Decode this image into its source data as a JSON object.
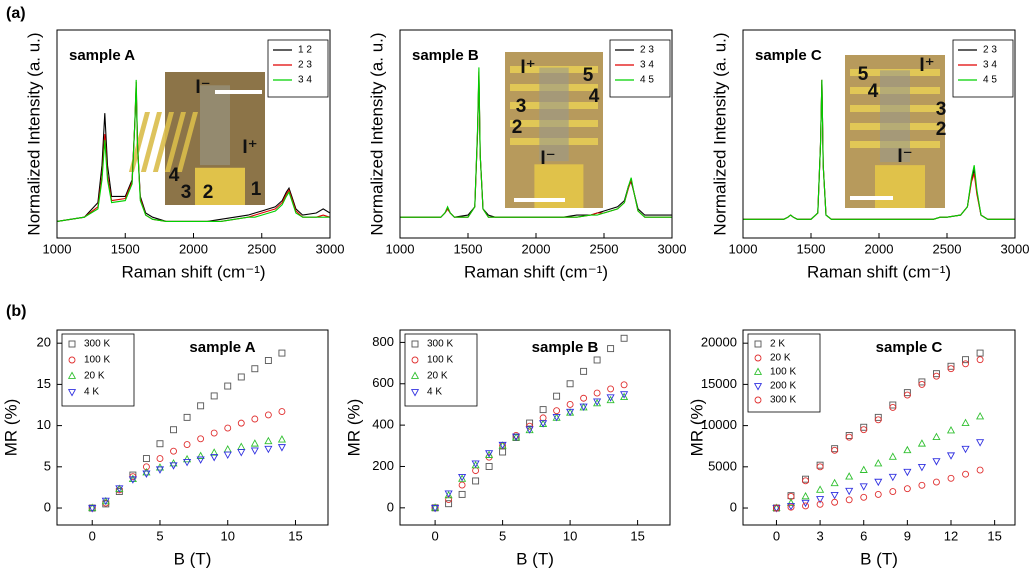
{
  "figure_labels": [
    "(a)",
    "(b)"
  ],
  "chart_data": [
    {
      "type": "line",
      "title": "sample A",
      "x_label": "Raman shift (cm⁻¹)",
      "y_label": "Normalized Intensity (a. u.)",
      "xlim": [
        1000,
        3000
      ],
      "xticks": [
        1000,
        1500,
        2000,
        2500,
        3000
      ],
      "ylim": [
        0,
        1
      ],
      "legend": "upper right",
      "x": [
        1000,
        1100,
        1200,
        1300,
        1330,
        1350,
        1370,
        1400,
        1500,
        1550,
        1570,
        1580,
        1590,
        1610,
        1650,
        1700,
        1800,
        1900,
        2000,
        2100,
        2200,
        2300,
        2400,
        2450,
        2500,
        2600,
        2650,
        2680,
        2700,
        2720,
        2750,
        2800,
        2900,
        2950,
        3000
      ],
      "series": [
        {
          "name": "1 2",
          "color": "#000000",
          "values": [
            0.08,
            0.09,
            0.1,
            0.17,
            0.35,
            0.6,
            0.35,
            0.2,
            0.2,
            0.28,
            0.55,
            0.72,
            0.45,
            0.2,
            0.12,
            0.1,
            0.08,
            0.08,
            0.08,
            0.08,
            0.09,
            0.1,
            0.11,
            0.12,
            0.13,
            0.15,
            0.18,
            0.22,
            0.24,
            0.2,
            0.14,
            0.11,
            0.12,
            0.14,
            0.12
          ]
        },
        {
          "name": "2 3",
          "color": "#e00000",
          "values": [
            0.08,
            0.09,
            0.1,
            0.15,
            0.3,
            0.5,
            0.3,
            0.18,
            0.19,
            0.27,
            0.55,
            0.75,
            0.45,
            0.19,
            0.11,
            0.09,
            0.08,
            0.08,
            0.08,
            0.08,
            0.08,
            0.09,
            0.1,
            0.11,
            0.12,
            0.14,
            0.17,
            0.21,
            0.23,
            0.19,
            0.13,
            0.1,
            0.1,
            0.11,
            0.1
          ]
        },
        {
          "name": "3 4",
          "color": "#00d000",
          "values": [
            0.08,
            0.09,
            0.1,
            0.14,
            0.28,
            0.47,
            0.28,
            0.17,
            0.18,
            0.26,
            0.55,
            0.76,
            0.45,
            0.18,
            0.11,
            0.09,
            0.08,
            0.08,
            0.08,
            0.08,
            0.08,
            0.09,
            0.1,
            0.1,
            0.11,
            0.13,
            0.16,
            0.2,
            0.22,
            0.18,
            0.12,
            0.1,
            0.1,
            0.1,
            0.1
          ]
        }
      ],
      "inset_labels": [
        "I⁻",
        "I⁺",
        "4",
        "3",
        "2",
        "1"
      ]
    },
    {
      "type": "line",
      "title": "sample B",
      "x_label": "Raman shift (cm⁻¹)",
      "y_label": "Normalized Intensity (a. u.)",
      "xlim": [
        1000,
        3000
      ],
      "xticks": [
        1000,
        1500,
        2000,
        2500,
        3000
      ],
      "ylim": [
        0,
        1
      ],
      "legend": "upper right",
      "x": [
        1000,
        1100,
        1200,
        1300,
        1330,
        1350,
        1370,
        1400,
        1500,
        1550,
        1570,
        1580,
        1590,
        1610,
        1650,
        1700,
        1800,
        1900,
        2000,
        2100,
        2200,
        2300,
        2400,
        2450,
        2500,
        2600,
        2650,
        2680,
        2700,
        2720,
        2750,
        2800,
        2900,
        2950,
        3000
      ],
      "series": [
        {
          "name": "2 3",
          "color": "#000000",
          "values": [
            0.1,
            0.1,
            0.1,
            0.1,
            0.12,
            0.14,
            0.12,
            0.1,
            0.11,
            0.15,
            0.5,
            0.78,
            0.4,
            0.14,
            0.11,
            0.1,
            0.1,
            0.1,
            0.1,
            0.1,
            0.1,
            0.11,
            0.11,
            0.12,
            0.13,
            0.15,
            0.18,
            0.25,
            0.27,
            0.22,
            0.14,
            0.11,
            0.11,
            0.11,
            0.11
          ]
        },
        {
          "name": "3 4",
          "color": "#e00000",
          "values": [
            0.1,
            0.1,
            0.1,
            0.1,
            0.12,
            0.14,
            0.12,
            0.1,
            0.1,
            0.15,
            0.5,
            0.8,
            0.4,
            0.14,
            0.1,
            0.1,
            0.1,
            0.1,
            0.1,
            0.1,
            0.1,
            0.1,
            0.11,
            0.12,
            0.12,
            0.14,
            0.17,
            0.24,
            0.28,
            0.22,
            0.13,
            0.1,
            0.1,
            0.1,
            0.1
          ]
        },
        {
          "name": "4 5",
          "color": "#00d000",
          "values": [
            0.1,
            0.1,
            0.1,
            0.1,
            0.12,
            0.15,
            0.12,
            0.1,
            0.1,
            0.15,
            0.52,
            0.82,
            0.4,
            0.14,
            0.1,
            0.1,
            0.1,
            0.1,
            0.1,
            0.1,
            0.1,
            0.1,
            0.11,
            0.11,
            0.12,
            0.14,
            0.17,
            0.25,
            0.29,
            0.22,
            0.13,
            0.1,
            0.1,
            0.1,
            0.1
          ]
        }
      ],
      "inset_labels": [
        "I⁺",
        "5",
        "4",
        "3",
        "2",
        "I⁻"
      ]
    },
    {
      "type": "line",
      "title": "sample C",
      "x_label": "Raman shift (cm⁻¹)",
      "y_label": "Normalized Intensity (a. u.)",
      "xlim": [
        1000,
        3000
      ],
      "xticks": [
        1000,
        1500,
        2000,
        2500,
        3000
      ],
      "ylim": [
        0,
        1
      ],
      "legend": "upper right",
      "x": [
        1000,
        1100,
        1200,
        1300,
        1330,
        1350,
        1370,
        1400,
        1500,
        1550,
        1570,
        1580,
        1590,
        1610,
        1650,
        1700,
        1800,
        1900,
        2000,
        2100,
        2200,
        2300,
        2400,
        2450,
        2500,
        2600,
        2650,
        2680,
        2700,
        2720,
        2750,
        2800,
        2900,
        2950,
        3000
      ],
      "series": [
        {
          "name": "2 3",
          "color": "#000000",
          "values": [
            0.09,
            0.09,
            0.09,
            0.09,
            0.1,
            0.11,
            0.1,
            0.09,
            0.09,
            0.12,
            0.45,
            0.76,
            0.35,
            0.11,
            0.09,
            0.09,
            0.09,
            0.09,
            0.09,
            0.09,
            0.09,
            0.09,
            0.09,
            0.1,
            0.1,
            0.11,
            0.15,
            0.28,
            0.33,
            0.22,
            0.11,
            0.09,
            0.09,
            0.09,
            0.09
          ]
        },
        {
          "name": "3 4",
          "color": "#e00000",
          "values": [
            0.09,
            0.09,
            0.09,
            0.09,
            0.1,
            0.11,
            0.1,
            0.09,
            0.09,
            0.12,
            0.45,
            0.76,
            0.35,
            0.11,
            0.09,
            0.09,
            0.09,
            0.09,
            0.09,
            0.09,
            0.09,
            0.09,
            0.09,
            0.1,
            0.1,
            0.11,
            0.15,
            0.27,
            0.31,
            0.21,
            0.11,
            0.09,
            0.09,
            0.09,
            0.09
          ]
        },
        {
          "name": "4 5",
          "color": "#00d000",
          "values": [
            0.09,
            0.09,
            0.09,
            0.09,
            0.1,
            0.11,
            0.1,
            0.09,
            0.09,
            0.12,
            0.45,
            0.76,
            0.35,
            0.11,
            0.09,
            0.09,
            0.09,
            0.09,
            0.09,
            0.09,
            0.09,
            0.09,
            0.09,
            0.1,
            0.1,
            0.11,
            0.15,
            0.29,
            0.35,
            0.23,
            0.11,
            0.09,
            0.09,
            0.09,
            0.09
          ]
        }
      ],
      "inset_labels": [
        "I⁺",
        "5",
        "4",
        "3",
        "2",
        "I⁻"
      ]
    },
    {
      "type": "scatter",
      "title": "sample A",
      "x_label": "B (T)",
      "y_label": "MR (%)",
      "xlim": [
        -2.6,
        17.4
      ],
      "xticks": [
        0,
        5,
        10,
        15
      ],
      "ylim": [
        -2.06,
        21.6
      ],
      "yticks": [
        0,
        5,
        10,
        15,
        20
      ],
      "legend": "upper left",
      "x": [
        0,
        1,
        2,
        3,
        4,
        5,
        6,
        7,
        8,
        9,
        10,
        11,
        12,
        13,
        14
      ],
      "series": [
        {
          "name": "300 K",
          "color": "#555555",
          "marker": "square",
          "values": [
            0,
            0.5,
            2,
            4,
            6,
            7.8,
            9.5,
            11,
            12.4,
            13.6,
            14.8,
            15.9,
            16.9,
            17.9,
            18.8
          ]
        },
        {
          "name": "100 K",
          "color": "#e03030",
          "marker": "circle",
          "values": [
            0,
            0.6,
            2.2,
            3.8,
            5,
            6,
            6.9,
            7.7,
            8.4,
            9.1,
            9.7,
            10.3,
            10.8,
            11.3,
            11.7
          ]
        },
        {
          "name": "20 K",
          "color": "#30c030",
          "marker": "triangle-up",
          "values": [
            0,
            0.8,
            2.3,
            3.5,
            4.3,
            4.9,
            5.4,
            5.9,
            6.3,
            6.7,
            7.1,
            7.4,
            7.8,
            8.1,
            8.3
          ]
        },
        {
          "name": "4 K",
          "color": "#3030e0",
          "marker": "triangle-down",
          "values": [
            0,
            0.9,
            2.4,
            3.5,
            4.2,
            4.7,
            5.2,
            5.6,
            5.9,
            6.2,
            6.5,
            6.8,
            7,
            7.2,
            7.4
          ]
        }
      ]
    },
    {
      "type": "scatter",
      "title": "sample B",
      "x_label": "B (T)",
      "y_label": "MR (%)",
      "xlim": [
        -2.6,
        17.4
      ],
      "xticks": [
        0,
        5,
        10,
        15
      ],
      "ylim": [
        -83,
        860
      ],
      "yticks": [
        0,
        200,
        400,
        600,
        800
      ],
      "legend": "upper left",
      "x": [
        0,
        1,
        2,
        3,
        4,
        5,
        6,
        7,
        8,
        9,
        10,
        11,
        12,
        13,
        14
      ],
      "series": [
        {
          "name": "300 K",
          "color": "#555555",
          "marker": "square",
          "values": [
            0,
            20,
            65,
            130,
            200,
            270,
            340,
            410,
            475,
            540,
            600,
            660,
            715,
            770,
            820
          ]
        },
        {
          "name": "100 K",
          "color": "#e03030",
          "marker": "circle",
          "values": [
            0,
            40,
            110,
            180,
            245,
            300,
            350,
            395,
            435,
            470,
            500,
            530,
            555,
            575,
            595
          ]
        },
        {
          "name": "20 K",
          "color": "#30c030",
          "marker": "triangle-up",
          "values": [
            0,
            60,
            140,
            205,
            255,
            300,
            340,
            375,
            405,
            435,
            460,
            485,
            505,
            520,
            535
          ]
        },
        {
          "name": "4 K",
          "color": "#3030e0",
          "marker": "triangle-down",
          "values": [
            0,
            70,
            150,
            215,
            265,
            305,
            345,
            380,
            410,
            440,
            465,
            490,
            515,
            535,
            550
          ]
        }
      ]
    },
    {
      "type": "scatter",
      "title": "sample C",
      "x_label": "B (T)",
      "y_label": "MR (%)",
      "xlim": [
        -2.3,
        16.4
      ],
      "xticks": [
        0,
        3,
        6,
        9,
        12,
        15
      ],
      "ylim": [
        -2060,
        21600
      ],
      "yticks": [
        0,
        5000,
        10000,
        15000,
        20000
      ],
      "legend": "upper left",
      "x": [
        0,
        1,
        2,
        3,
        4,
        5,
        6,
        7,
        8,
        9,
        10,
        11,
        12,
        13,
        14
      ],
      "series": [
        {
          "name": "2 K",
          "color": "#555555",
          "marker": "square",
          "values": [
            0,
            1500,
            3500,
            5200,
            7200,
            8800,
            9800,
            11000,
            12500,
            14000,
            15300,
            16300,
            17200,
            18000,
            18800
          ]
        },
        {
          "name": "20 K",
          "color": "#e03030",
          "marker": "circle",
          "values": [
            0,
            1400,
            3300,
            5000,
            7000,
            8600,
            9500,
            10700,
            12200,
            13700,
            15000,
            16000,
            16900,
            17500,
            18000
          ]
        },
        {
          "name": "100 K",
          "color": "#30c030",
          "marker": "triangle-up",
          "values": [
            0,
            600,
            1400,
            2200,
            3000,
            3800,
            4600,
            5400,
            6200,
            7000,
            7800,
            8600,
            9400,
            10300,
            11100
          ]
        },
        {
          "name": "200 K",
          "color": "#3030e0",
          "marker": "triangle-down",
          "values": [
            0,
            250,
            650,
            1100,
            1600,
            2100,
            2650,
            3200,
            3800,
            4400,
            5000,
            5700,
            6400,
            7200,
            8000
          ]
        },
        {
          "name": "300 K",
          "color": "#e03030",
          "marker": "circle",
          "values": [
            0,
            100,
            250,
            450,
            700,
            1000,
            1300,
            1650,
            2000,
            2350,
            2750,
            3150,
            3600,
            4100,
            4600
          ]
        }
      ]
    }
  ]
}
